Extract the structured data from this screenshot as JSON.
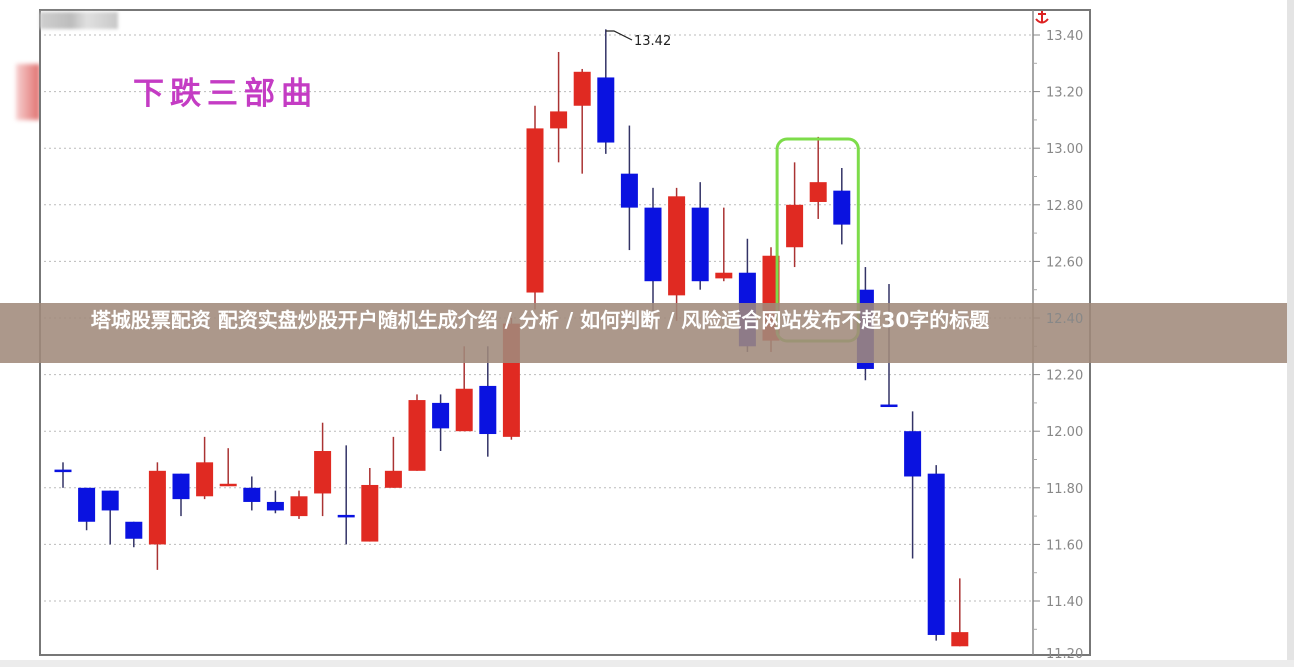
{
  "banner": {
    "text": "塔城股票配资 配资实盘炒股开户随机生成介绍 / 分析 / 如何判断 / 风险适合网站发布不超30字的标题"
  },
  "chart_data": {
    "type": "candlestick",
    "title": "下跌三部曲",
    "annotation": "13.42",
    "ylim": [
      11.2,
      13.45
    ],
    "yticks": [
      "13.40",
      "13.20",
      "13.00",
      "12.80",
      "12.60",
      "12.40",
      "12.20",
      "12.00",
      "11.80",
      "11.60",
      "11.40",
      "11.20"
    ],
    "grid": true,
    "colors": {
      "up": "#e02a22",
      "down": "#0a12e0",
      "highlight": "#7ddc4a",
      "title": "#c43cc4"
    },
    "highlight_range": [
      31,
      33
    ],
    "candles": [
      {
        "o": 11.86,
        "h": 11.89,
        "l": 11.8,
        "c": 11.86,
        "dir": "down"
      },
      {
        "o": 11.8,
        "h": 11.8,
        "l": 11.65,
        "c": 11.68
      },
      {
        "o": 11.79,
        "h": 11.79,
        "l": 11.6,
        "c": 11.72
      },
      {
        "o": 11.68,
        "h": 11.68,
        "l": 11.59,
        "c": 11.62
      },
      {
        "o": 11.6,
        "h": 11.89,
        "l": 11.51,
        "c": 11.86
      },
      {
        "o": 11.85,
        "h": 11.85,
        "l": 11.7,
        "c": 11.76
      },
      {
        "o": 11.77,
        "h": 11.98,
        "l": 11.76,
        "c": 11.89
      },
      {
        "o": 11.81,
        "h": 11.94,
        "l": 11.81,
        "c": 11.81,
        "dir": "up"
      },
      {
        "o": 11.8,
        "h": 11.84,
        "l": 11.72,
        "c": 11.75
      },
      {
        "o": 11.75,
        "h": 11.79,
        "l": 11.71,
        "c": 11.72
      },
      {
        "o": 11.7,
        "h": 11.79,
        "l": 11.69,
        "c": 11.77
      },
      {
        "o": 11.78,
        "h": 12.03,
        "l": 11.7,
        "c": 11.93
      },
      {
        "o": 11.7,
        "h": 11.95,
        "l": 11.6,
        "c": 11.7,
        "dir": "down"
      },
      {
        "o": 11.61,
        "h": 11.87,
        "l": 11.61,
        "c": 11.81
      },
      {
        "o": 11.8,
        "h": 11.98,
        "l": 11.8,
        "c": 11.86
      },
      {
        "o": 11.86,
        "h": 12.13,
        "l": 11.86,
        "c": 12.11
      },
      {
        "o": 12.1,
        "h": 12.13,
        "l": 11.93,
        "c": 12.01
      },
      {
        "o": 12.0,
        "h": 12.3,
        "l": 12.0,
        "c": 12.15
      },
      {
        "o": 12.16,
        "h": 12.3,
        "l": 11.91,
        "c": 11.99
      },
      {
        "o": 11.98,
        "h": 12.4,
        "l": 11.97,
        "c": 12.38
      },
      {
        "o": 12.49,
        "h": 13.15,
        "l": 12.43,
        "c": 13.07
      },
      {
        "o": 13.07,
        "h": 13.34,
        "l": 12.95,
        "c": 13.13
      },
      {
        "o": 13.15,
        "h": 13.28,
        "l": 12.91,
        "c": 13.27
      },
      {
        "o": 13.25,
        "h": 13.42,
        "l": 12.98,
        "c": 13.02
      },
      {
        "o": 12.91,
        "h": 13.08,
        "l": 12.64,
        "c": 12.79
      },
      {
        "o": 12.79,
        "h": 12.86,
        "l": 12.42,
        "c": 12.53
      },
      {
        "o": 12.48,
        "h": 12.86,
        "l": 12.39,
        "c": 12.83
      },
      {
        "o": 12.79,
        "h": 12.88,
        "l": 12.5,
        "c": 12.53
      },
      {
        "o": 12.54,
        "h": 12.79,
        "l": 12.53,
        "c": 12.56
      },
      {
        "o": 12.56,
        "h": 12.68,
        "l": 12.28,
        "c": 12.3
      },
      {
        "o": 12.32,
        "h": 12.65,
        "l": 12.28,
        "c": 12.62
      },
      {
        "o": 12.65,
        "h": 12.95,
        "l": 12.58,
        "c": 12.8
      },
      {
        "o": 12.81,
        "h": 13.04,
        "l": 12.75,
        "c": 12.88
      },
      {
        "o": 12.85,
        "h": 12.93,
        "l": 12.66,
        "c": 12.73
      },
      {
        "o": 12.5,
        "h": 12.58,
        "l": 12.18,
        "c": 12.22
      },
      {
        "o": 12.09,
        "h": 12.52,
        "l": 12.09,
        "c": 12.09,
        "dir": "down"
      },
      {
        "o": 12.0,
        "h": 12.07,
        "l": 11.55,
        "c": 11.84
      },
      {
        "o": 11.85,
        "h": 11.88,
        "l": 11.26,
        "c": 11.28
      },
      {
        "o": 11.24,
        "h": 11.48,
        "l": 11.24,
        "c": 11.29
      }
    ]
  },
  "icons": {
    "anchor": "anchor-icon"
  }
}
